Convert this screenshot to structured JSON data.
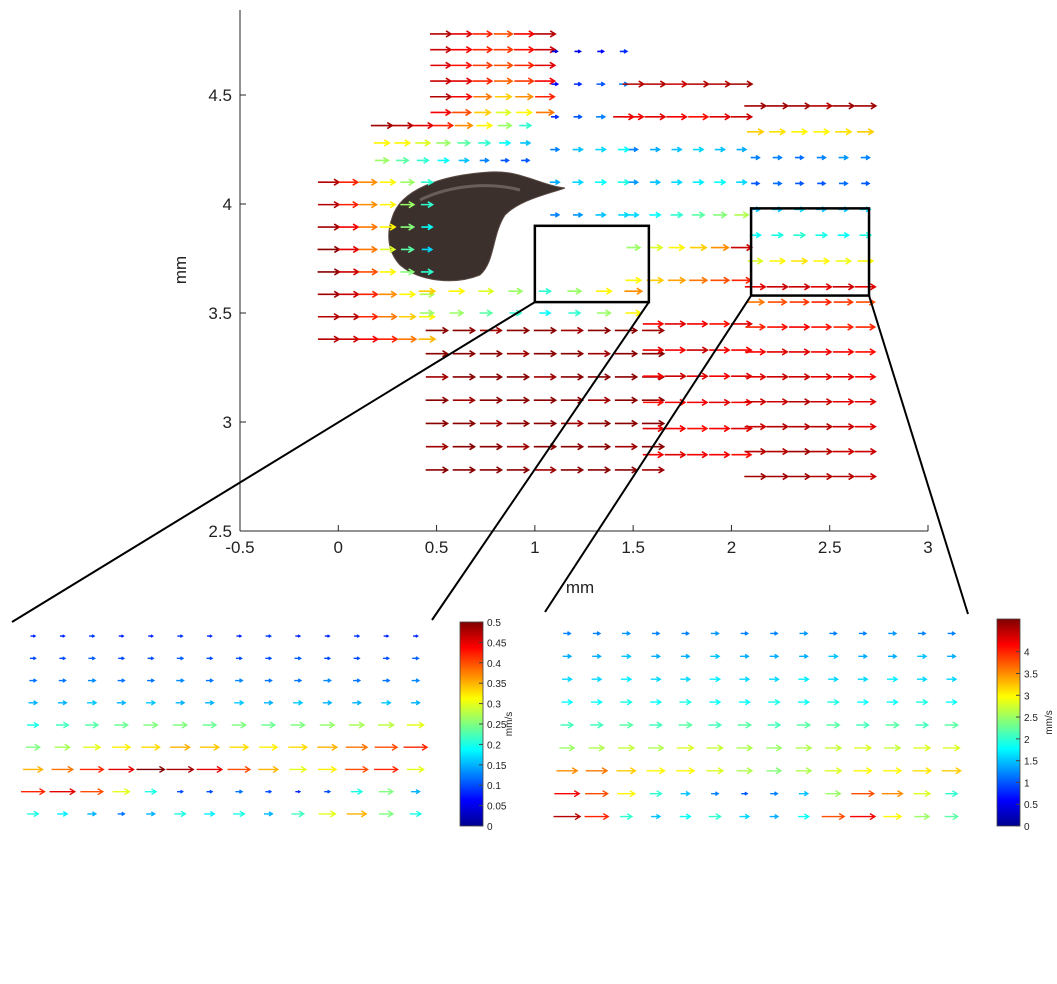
{
  "chart_data": [
    {
      "type": "quiver",
      "xlabel": "mm",
      "ylabel": "mm",
      "xlim": [
        -0.5,
        3
      ],
      "ylim": [
        2.5,
        4.89
      ],
      "xticks": [
        -0.5,
        0,
        0.5,
        1,
        1.5,
        2,
        2.5,
        3
      ],
      "yticks": [
        2.5,
        3,
        3.5,
        4,
        4.5
      ],
      "zoom_boxes": [
        {
          "x": [
            1.0,
            1.58
          ],
          "y": [
            3.55,
            3.9
          ]
        },
        {
          "x": [
            2.1,
            2.7
          ],
          "y": [
            3.58,
            3.98
          ]
        }
      ],
      "fields": [
        {
          "x": [
            -0.05,
            0.45
          ],
          "y": [
            4.1,
            3.38
          ],
          "speed": [
            [
              4.5,
              4,
              3.5,
              3,
              2.5,
              2
            ],
            [
              4.5,
              4,
              3.5,
              3,
              2.5,
              2
            ],
            [
              4.6,
              4.2,
              3.6,
              3,
              2.4,
              1.8
            ],
            [
              4.7,
              4.3,
              3.6,
              2.8,
              2.2,
              1.6
            ],
            [
              4.7,
              4.4,
              3.8,
              3,
              2.4,
              2
            ],
            [
              4.6,
              4.4,
              4,
              3.5,
              3,
              2.6
            ],
            [
              4.5,
              4.5,
              4,
              3.6,
              3.2,
              3
            ],
            [
              4.5,
              4.4,
              4.2,
              4,
              3.6,
              3.3
            ]
          ]
        },
        {
          "x": [
            0.52,
            1.05
          ],
          "y": [
            4.78,
            4.42
          ],
          "speed": [
            [
              4.5,
              4.3,
              4,
              3.8,
              4.2,
              4.5
            ],
            [
              4.4,
              4.2,
              4,
              3.9,
              4.1,
              4.4
            ],
            [
              4.3,
              4.1,
              3.9,
              3.8,
              4,
              4.3
            ],
            [
              4.4,
              4.3,
              4,
              3.7,
              3.9,
              4.2
            ],
            [
              4.5,
              4.2,
              3.6,
              3.2,
              3.5,
              4
            ],
            [
              4.2,
              3.8,
              3.2,
              2.8,
              3,
              3.6
            ]
          ]
        },
        {
          "x": [
            0.22,
            0.95
          ],
          "y": [
            4.36,
            4.2
          ],
          "speed": [
            [
              4.6,
              4.5,
              4.3,
              4,
              3.5,
              3,
              2.5,
              2
            ],
            [
              3,
              3,
              2.8,
              2.5,
              2.2,
              2,
              1.8,
              1.5
            ],
            [
              2.5,
              2.2,
              2,
              1.8,
              1.5,
              1.2,
              1,
              1
            ]
          ]
        },
        {
          "x": [
            1.1,
            1.45
          ],
          "y": [
            4.7,
            3.95
          ],
          "speed": [
            [
              0.4,
              0.5,
              0.6,
              0.8
            ],
            [
              0.6,
              0.8,
              1,
              1.2
            ],
            [
              0.8,
              1,
              1.2,
              4.3
            ],
            [
              1.2,
              1.5,
              1.6,
              1.8
            ],
            [
              1.4,
              1.6,
              1.8,
              1.9
            ],
            [
              1.2,
              1.3,
              1.5,
              1.6
            ]
          ]
        },
        {
          "x": [
            1.5,
            2.05
          ],
          "y": [
            4.55,
            3.65
          ],
          "speed": [
            [
              4.5,
              4.5,
              4.4,
              4.5,
              4.5,
              4.6
            ],
            [
              4.2,
              4.3,
              4.2,
              4.1,
              4.3,
              4.4
            ],
            [
              1.2,
              1.4,
              1.5,
              1.6,
              1.5,
              1.4
            ],
            [
              1.3,
              1.5,
              1.6,
              1.7,
              1.8,
              1.6
            ],
            [
              1.6,
              1.8,
              2,
              2.2,
              2.4,
              2.6
            ],
            [
              2.5,
              2.8,
              3,
              3.2,
              3.5,
              4.4
            ],
            [
              3,
              3.2,
              3.4,
              3.6,
              3.8,
              4
            ]
          ]
        },
        {
          "x": [
            0.45,
            1.5
          ],
          "y": [
            3.6,
            3.5
          ],
          "speed": [
            [
              3.2,
              3,
              2.8,
              2.5,
              2,
              2.5,
              3,
              3.5
            ],
            [
              2.5,
              2.5,
              2.2,
              2,
              1.8,
              2,
              2.5,
              3
            ]
          ]
        },
        {
          "x": [
            0.5,
            1.6
          ],
          "y": [
            3.42,
            2.78
          ],
          "speed": [
            [
              4.7,
              4.7,
              4.6,
              4.7,
              4.7,
              4.6,
              4.7,
              4.7,
              4.6
            ],
            [
              4.7,
              4.7,
              4.7,
              4.6,
              4.7,
              4.7,
              4.6,
              4.7,
              4.7
            ],
            [
              4.6,
              4.7,
              4.7,
              4.7,
              4.6,
              4.7,
              4.7,
              4.7,
              4.6
            ],
            [
              4.7,
              4.6,
              4.7,
              4.7,
              4.7,
              4.7,
              4.6,
              4.7,
              4.7
            ],
            [
              4.7,
              4.7,
              4.6,
              4.7,
              4.7,
              4.6,
              4.7,
              4.7,
              4.7
            ],
            [
              4.6,
              4.7,
              4.7,
              4.6,
              4.7,
              4.7,
              4.7,
              4.6,
              4.7
            ],
            [
              4.7,
              4.7,
              4.7,
              4.7,
              4.6,
              4.7,
              4.7,
              4.7,
              4.6
            ]
          ]
        },
        {
          "x": [
            1.6,
            2.05
          ],
          "y": [
            3.45,
            2.85
          ],
          "speed": [
            [
              4.2,
              4.3,
              4.2,
              4.1,
              4.3
            ],
            [
              4.3,
              4.2,
              4.4,
              4.2,
              4.2
            ],
            [
              4.2,
              4.4,
              4.3,
              4.2,
              4.3
            ],
            [
              4.1,
              4.2,
              4.2,
              4.3,
              4.2
            ],
            [
              4.3,
              4.2,
              4.1,
              4.2,
              4.3
            ],
            [
              4.2,
              4.3,
              4.2,
              4.2,
              4.1
            ]
          ]
        },
        {
          "x": [
            2.12,
            2.68
          ],
          "y": [
            3.55,
            2.75
          ],
          "speed": [
            [
              3.6,
              3.8,
              3.9,
              4,
              3.9,
              3.8
            ],
            [
              4,
              4.1,
              4.2,
              4.1,
              4,
              4
            ],
            [
              4.2,
              4.3,
              4.3,
              4.2,
              4.2,
              4.1
            ],
            [
              4.3,
              4.4,
              4.4,
              4.3,
              4.3,
              4.2
            ],
            [
              4.4,
              4.4,
              4.5,
              4.4,
              4.3,
              4.3
            ],
            [
              4.4,
              4.5,
              4.5,
              4.5,
              4.4,
              4.3
            ],
            [
              4.5,
              4.5,
              4.6,
              4.5,
              4.4,
              4.4
            ],
            [
              4.6,
              4.6,
              4.6,
              4.5,
              4.5,
              4.4
            ]
          ]
        },
        {
          "x": [
            2.12,
            2.68
          ],
          "y": [
            4.45,
            3.62
          ],
          "speed": [
            [
              4.6,
              4.6,
              4.6,
              4.5,
              4.6,
              4.6
            ],
            [
              3.2,
              3.1,
              3,
              3,
              3.1,
              3.2
            ],
            [
              1.2,
              1.2,
              1.1,
              1.2,
              1.3,
              1.2
            ],
            [
              1,
              1.1,
              1,
              1,
              1.1,
              1
            ],
            [
              1.5,
              1.5,
              1.6,
              1.5,
              1.5,
              1.6
            ],
            [
              1.8,
              1.9,
              2,
              1.9,
              1.8,
              1.9
            ],
            [
              2.8,
              3,
              3.1,
              3,
              2.9,
              3
            ],
            [
              4.3,
              4.4,
              4.4,
              4.3,
              4.4,
              4.3
            ]
          ]
        }
      ]
    },
    {
      "type": "quiver",
      "speed": [
        [
          0.08,
          0.08,
          0.09,
          0.08,
          0.08,
          0.09,
          0.08,
          0.08,
          0.09,
          0.08,
          0.08,
          0.09,
          0.08,
          0.08
        ],
        [
          0.1,
          0.1,
          0.11,
          0.1,
          0.1,
          0.11,
          0.1,
          0.1,
          0.1,
          0.11,
          0.1,
          0.1,
          0.1,
          0.11
        ],
        [
          0.12,
          0.12,
          0.13,
          0.12,
          0.12,
          0.13,
          0.12,
          0.13,
          0.12,
          0.12,
          0.13,
          0.12,
          0.12,
          0.13
        ],
        [
          0.15,
          0.15,
          0.16,
          0.15,
          0.16,
          0.15,
          0.15,
          0.16,
          0.15,
          0.16,
          0.15,
          0.15,
          0.16,
          0.15
        ],
        [
          0.2,
          0.22,
          0.23,
          0.24,
          0.25,
          0.25,
          0.24,
          0.25,
          0.24,
          0.25,
          0.26,
          0.27,
          0.28,
          0.3
        ],
        [
          0.25,
          0.27,
          0.3,
          0.32,
          0.33,
          0.35,
          0.34,
          0.33,
          0.32,
          0.33,
          0.35,
          0.38,
          0.4,
          0.42
        ],
        [
          0.35,
          0.38,
          0.42,
          0.45,
          0.5,
          0.48,
          0.45,
          0.4,
          0.35,
          0.3,
          0.32,
          0.4,
          0.42,
          0.3
        ],
        [
          0.42,
          0.45,
          0.4,
          0.3,
          0.2,
          0.1,
          0.1,
          0.12,
          0.1,
          0.08,
          0.1,
          0.2,
          0.25,
          0.15
        ],
        [
          0.2,
          0.18,
          0.15,
          0.12,
          0.15,
          0.2,
          0.18,
          0.2,
          0.15,
          0.22,
          0.3,
          0.35,
          0.25,
          0.2
        ]
      ],
      "colorbar": {
        "lim": [
          0,
          0.5
        ],
        "ticks": [
          0,
          0.05,
          0.1,
          0.15,
          0.2,
          0.25,
          0.3,
          0.35,
          0.4,
          0.45,
          0.5
        ],
        "label": "mm/s"
      }
    },
    {
      "type": "quiver",
      "speed": [
        [
          1.2,
          1.2,
          1.3,
          1.2,
          1.2,
          1.3,
          1.2,
          1.2,
          1.3,
          1.2,
          1.2,
          1.3,
          1.2,
          1.2
        ],
        [
          1.4,
          1.4,
          1.5,
          1.4,
          1.4,
          1.5,
          1.4,
          1.4,
          1.4,
          1.5,
          1.4,
          1.4,
          1.5,
          1.4
        ],
        [
          1.6,
          1.6,
          1.7,
          1.6,
          1.6,
          1.7,
          1.6,
          1.6,
          1.7,
          1.6,
          1.6,
          1.7,
          1.6,
          1.6
        ],
        [
          1.8,
          1.8,
          1.9,
          1.8,
          1.9,
          1.8,
          1.8,
          1.9,
          1.8,
          1.9,
          1.8,
          1.8,
          1.9,
          1.8
        ],
        [
          2.1,
          2.1,
          2.2,
          2.1,
          2.2,
          2.1,
          2.2,
          2.1,
          2.2,
          2.2,
          2.1,
          2.2,
          2.1,
          2.2
        ],
        [
          2.5,
          2.6,
          2.7,
          2.6,
          2.8,
          2.7,
          2.6,
          2.5,
          2.6,
          2.7,
          2.8,
          2.7,
          2.8,
          2.8
        ],
        [
          3.5,
          3.6,
          3.2,
          3,
          3,
          2.8,
          2.6,
          2.4,
          2.6,
          2.8,
          3,
          3,
          3.1,
          3.2
        ],
        [
          4.2,
          3.8,
          3,
          2,
          1.5,
          1.2,
          1,
          1.2,
          1.5,
          2.5,
          3.8,
          3.5,
          2.8,
          2
        ],
        [
          4.5,
          4,
          2,
          1.5,
          1.8,
          2,
          1.6,
          1.4,
          1.8,
          3.8,
          4.2,
          3,
          2.5,
          2.2
        ]
      ],
      "colorbar": {
        "lim": [
          0,
          4.75
        ],
        "ticks": [
          0,
          0.5,
          1,
          1.5,
          2,
          2.5,
          3,
          3.5,
          4
        ],
        "label": "mm/s"
      }
    }
  ]
}
